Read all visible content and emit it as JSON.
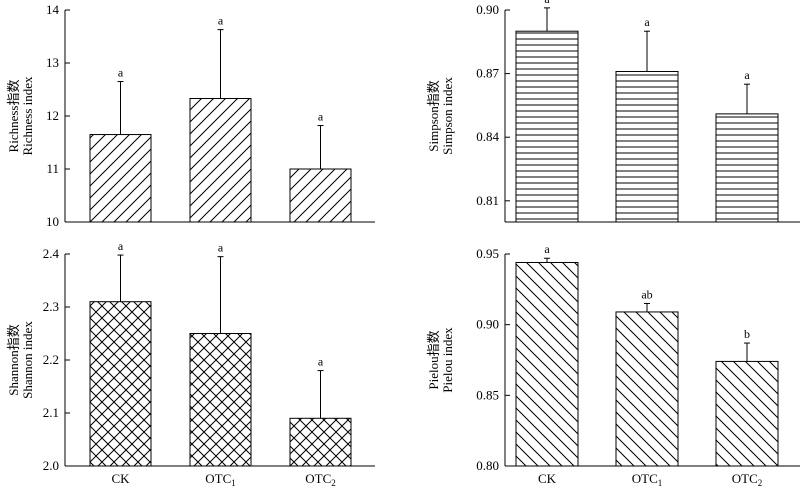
{
  "chart_data": [
    {
      "type": "bar",
      "ylabel_line1": "Richness指数",
      "ylabel_line2": "Richness index",
      "ylim": [
        10,
        14
      ],
      "yticks": [
        10,
        11,
        12,
        13,
        14
      ],
      "tick_decimals": 0,
      "hatch": "diag-right",
      "categories": [
        "",
        "",
        ""
      ],
      "values": [
        11.65,
        12.33,
        11.0
      ],
      "errors": [
        1.0,
        1.3,
        0.82
      ],
      "significance": [
        "a",
        "a",
        "a"
      ]
    },
    {
      "type": "bar",
      "ylabel_line1": "Simpson指数",
      "ylabel_line2": "Simpson index",
      "ylim": [
        0.8,
        0.9
      ],
      "yticks": [
        0.81,
        0.84,
        0.87,
        0.9
      ],
      "tick_decimals": 2,
      "hatch": "horizontal",
      "categories": [
        "",
        "",
        ""
      ],
      "values": [
        0.89,
        0.871,
        0.851
      ],
      "errors": [
        0.011,
        0.019,
        0.014
      ],
      "significance": [
        "a",
        "a",
        "a"
      ]
    },
    {
      "type": "bar",
      "ylabel_line1": "Shannon指数",
      "ylabel_line2": "Shannon index",
      "ylim": [
        2.0,
        2.4
      ],
      "yticks": [
        2.0,
        2.1,
        2.2,
        2.3,
        2.4
      ],
      "tick_decimals": 1,
      "hatch": "crosshatch",
      "categories": [
        "CK",
        "OTC1",
        "OTC2"
      ],
      "values": [
        2.31,
        2.25,
        2.09
      ],
      "errors": [
        0.088,
        0.145,
        0.09
      ],
      "significance": [
        "a",
        "a",
        "a"
      ]
    },
    {
      "type": "bar",
      "ylabel_line1": "Pielou指数",
      "ylabel_line2": "Pielou index",
      "ylim": [
        0.8,
        0.95
      ],
      "yticks": [
        0.8,
        0.85,
        0.9,
        0.95
      ],
      "tick_decimals": 2,
      "hatch": "diag-left",
      "categories": [
        "CK",
        "OTC1",
        "OTC2"
      ],
      "values": [
        0.944,
        0.909,
        0.874
      ],
      "errors": [
        0.003,
        0.006,
        0.013
      ],
      "significance": [
        "a",
        "ab",
        "b"
      ]
    }
  ]
}
